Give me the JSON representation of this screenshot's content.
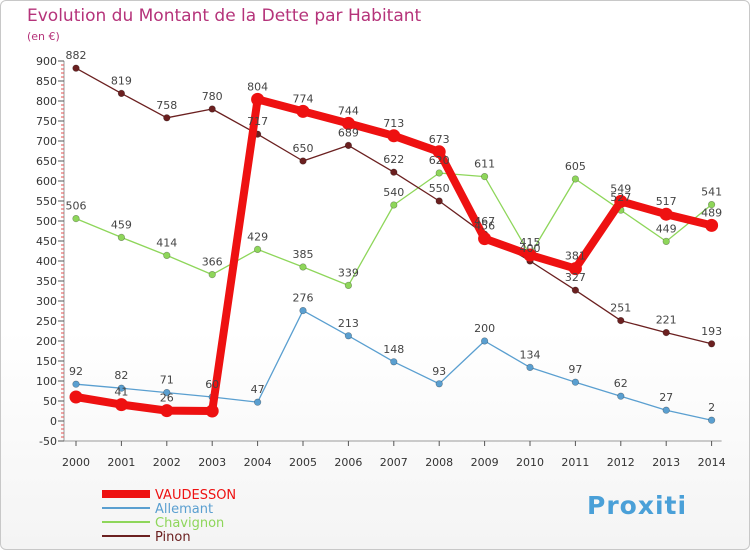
{
  "title": "Evolution du Montant de la Dette par Habitant",
  "unit": "(en €)",
  "logo": "Proxiti",
  "chart_data": {
    "type": "line",
    "title": "Evolution du Montant de la Dette par Habitant",
    "ylabel": "(en €)",
    "xlabel": "",
    "x": [
      "2000",
      "2001",
      "2002",
      "2003",
      "2004",
      "2005",
      "2006",
      "2007",
      "2008",
      "2009",
      "2010",
      "2011",
      "2012",
      "2013",
      "2014"
    ],
    "ylim": [
      -50,
      900
    ],
    "yticks": [
      -50,
      0,
      50,
      100,
      150,
      200,
      250,
      300,
      350,
      400,
      450,
      500,
      550,
      600,
      650,
      700,
      750,
      800,
      850,
      900
    ],
    "grid": false,
    "legend_position": "bottom-left",
    "series": [
      {
        "name": "VAUDESSON",
        "color": "#ee1111",
        "values": [
          60,
          41,
          26,
          25,
          804,
          774,
          744,
          713,
          673,
          456,
          415,
          381,
          549,
          517,
          489
        ],
        "labels": [
          "",
          "41",
          "26",
          "",
          "804",
          "774",
          "744",
          "713",
          "673",
          "456",
          "",
          "381",
          "549",
          "517",
          "489"
        ]
      },
      {
        "name": "Allemant",
        "color": "#5a9fd0",
        "values": [
          92,
          82,
          71,
          60,
          47,
          276,
          213,
          148,
          93,
          200,
          134,
          97,
          62,
          27,
          2
        ],
        "labels": [
          "92",
          "82",
          "71",
          "60",
          "47",
          "276",
          "213",
          "148",
          "93",
          "200",
          "134",
          "97",
          "62",
          "27",
          "2"
        ]
      },
      {
        "name": "Chavignon",
        "color": "#8ed65a",
        "values": [
          506,
          459,
          414,
          366,
          429,
          385,
          339,
          540,
          620,
          611,
          415,
          605,
          527,
          449,
          541
        ],
        "labels": [
          "506",
          "459",
          "414",
          "366",
          "429",
          "385",
          "339",
          "540",
          "620",
          "611",
          "415",
          "605",
          "527",
          "449",
          "541"
        ]
      },
      {
        "name": "Pinon",
        "color": "#6b2020",
        "values": [
          882,
          819,
          758,
          780,
          717,
          650,
          689,
          622,
          550,
          467,
          400,
          327,
          251,
          221,
          193
        ],
        "labels": [
          "882",
          "819",
          "758",
          "780",
          "717",
          "650",
          "689",
          "622",
          "550",
          "467",
          "400",
          "327",
          "251",
          "221",
          "193"
        ]
      }
    ]
  }
}
